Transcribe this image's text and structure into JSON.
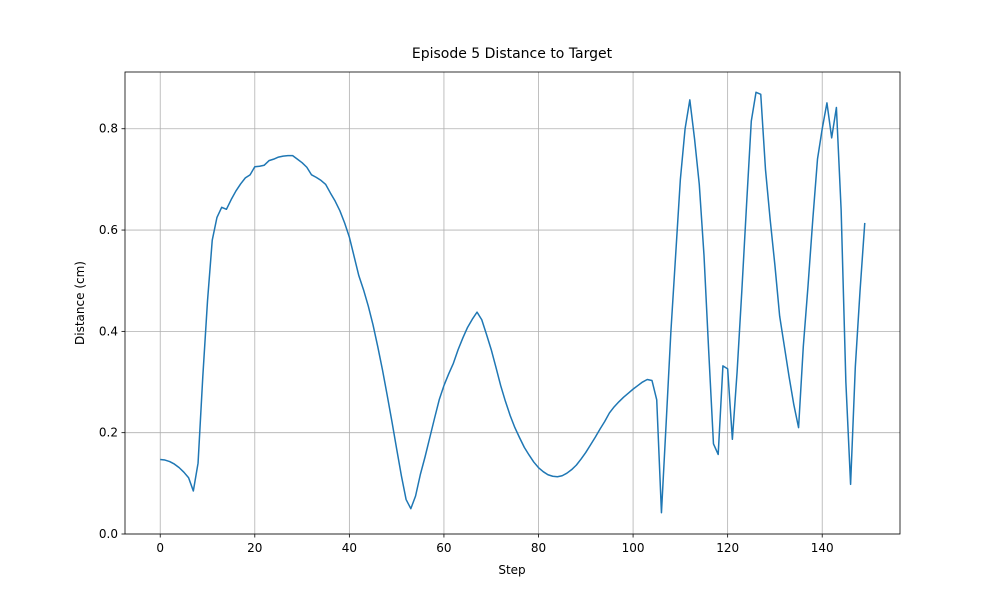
{
  "chart_data": {
    "type": "line",
    "title": "Episode 5 Distance to Target",
    "xlabel": "Step",
    "ylabel": "Distance (cm)",
    "x": [
      0,
      1,
      2,
      3,
      4,
      5,
      6,
      7,
      8,
      9,
      10,
      11,
      12,
      13,
      14,
      15,
      16,
      17,
      18,
      19,
      20,
      21,
      22,
      23,
      24,
      25,
      26,
      27,
      28,
      29,
      30,
      31,
      32,
      33,
      34,
      35,
      36,
      37,
      38,
      39,
      40,
      41,
      42,
      43,
      44,
      45,
      46,
      47,
      48,
      49,
      50,
      51,
      52,
      53,
      54,
      55,
      56,
      57,
      58,
      59,
      60,
      61,
      62,
      63,
      64,
      65,
      66,
      67,
      68,
      69,
      70,
      71,
      72,
      73,
      74,
      75,
      76,
      77,
      78,
      79,
      80,
      81,
      82,
      83,
      84,
      85,
      86,
      87,
      88,
      89,
      90,
      91,
      92,
      93,
      94,
      95,
      96,
      97,
      98,
      99,
      100,
      101,
      102,
      103,
      104,
      105,
      106,
      107,
      108,
      109,
      110,
      111,
      112,
      113,
      114,
      115,
      116,
      117,
      118,
      119,
      120,
      121,
      122,
      123,
      124,
      125,
      126,
      127,
      128,
      129,
      130,
      131,
      132,
      133,
      134,
      135,
      136,
      137,
      138,
      139,
      140,
      141,
      142,
      143,
      144,
      145,
      146,
      147,
      148,
      149
    ],
    "values": [
      0.147,
      0.146,
      0.143,
      0.138,
      0.131,
      0.122,
      0.111,
      0.085,
      0.14,
      0.31,
      0.46,
      0.58,
      0.625,
      0.645,
      0.641,
      0.66,
      0.677,
      0.691,
      0.703,
      0.709,
      0.725,
      0.726,
      0.728,
      0.737,
      0.74,
      0.744,
      0.746,
      0.747,
      0.747,
      0.74,
      0.733,
      0.724,
      0.709,
      0.704,
      0.698,
      0.69,
      0.673,
      0.657,
      0.638,
      0.614,
      0.586,
      0.548,
      0.51,
      0.482,
      0.45,
      0.413,
      0.37,
      0.324,
      0.274,
      0.222,
      0.168,
      0.115,
      0.068,
      0.05,
      0.075,
      0.117,
      0.152,
      0.19,
      0.228,
      0.265,
      0.293,
      0.316,
      0.337,
      0.364,
      0.387,
      0.408,
      0.424,
      0.438,
      0.423,
      0.394,
      0.364,
      0.329,
      0.293,
      0.262,
      0.234,
      0.21,
      0.19,
      0.171,
      0.156,
      0.142,
      0.131,
      0.123,
      0.117,
      0.114,
      0.113,
      0.115,
      0.12,
      0.127,
      0.136,
      0.148,
      0.161,
      0.176,
      0.191,
      0.207,
      0.222,
      0.239,
      0.251,
      0.261,
      0.27,
      0.278,
      0.286,
      0.293,
      0.3,
      0.305,
      0.303,
      0.265,
      0.042,
      0.22,
      0.4,
      0.55,
      0.7,
      0.8,
      0.857,
      0.78,
      0.69,
      0.55,
      0.36,
      0.178,
      0.157,
      0.332,
      0.326,
      0.187,
      0.32,
      0.48,
      0.65,
      0.815,
      0.872,
      0.868,
      0.72,
      0.62,
      0.53,
      0.43,
      0.37,
      0.31,
      0.255,
      0.21,
      0.37,
      0.49,
      0.62,
      0.74,
      0.8,
      0.851,
      0.782,
      0.842,
      0.64,
      0.3,
      0.098,
      0.33,
      0.48,
      0.614
    ],
    "color": "#1f77b4",
    "xlim": [
      -7.45,
      156.45
    ],
    "xticks": [
      0,
      20,
      40,
      60,
      80,
      100,
      120,
      140
    ],
    "ylim": [
      0,
      0.912
    ],
    "yticks": [
      {
        "value": 0,
        "label": "0.0"
      },
      0.2,
      0.4,
      0.6,
      0.8
    ],
    "grid": true
  }
}
